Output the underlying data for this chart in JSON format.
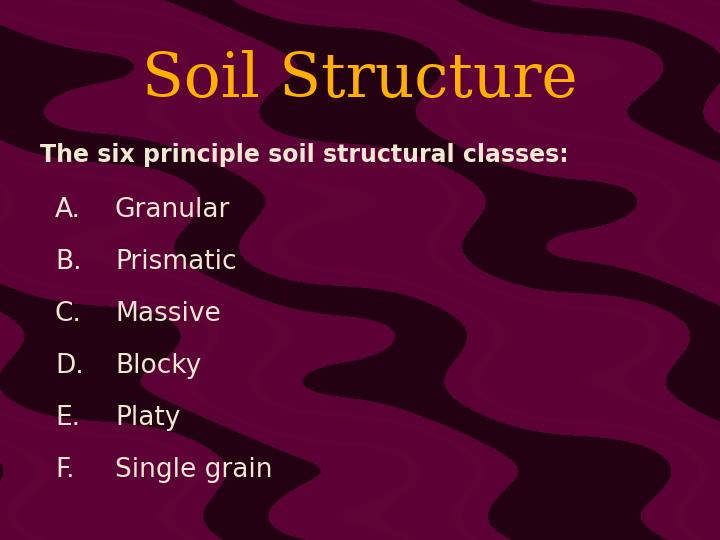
{
  "title": "Soil Structure",
  "title_color": "#FFB000",
  "title_fontsize": 44,
  "subtitle": "The six principle soil structural classes:",
  "subtitle_fontsize": 17,
  "subtitle_color": "#F0E8D0",
  "items": [
    [
      "A.",
      "Granular"
    ],
    [
      "B.",
      "Prismatic"
    ],
    [
      "C.",
      "Massive"
    ],
    [
      "D.",
      "Blocky"
    ],
    [
      "E.",
      "Platy"
    ],
    [
      "F.",
      "Single grain"
    ]
  ],
  "items_fontsize": 19,
  "items_color": "#F0E8D0",
  "bg_base_color": "#5C0035",
  "bg_dark_color": "#2A0018",
  "bg_mid_color": "#7A0048",
  "stripe_dark": "#3B0022",
  "stripe_mid": "#8C1055"
}
